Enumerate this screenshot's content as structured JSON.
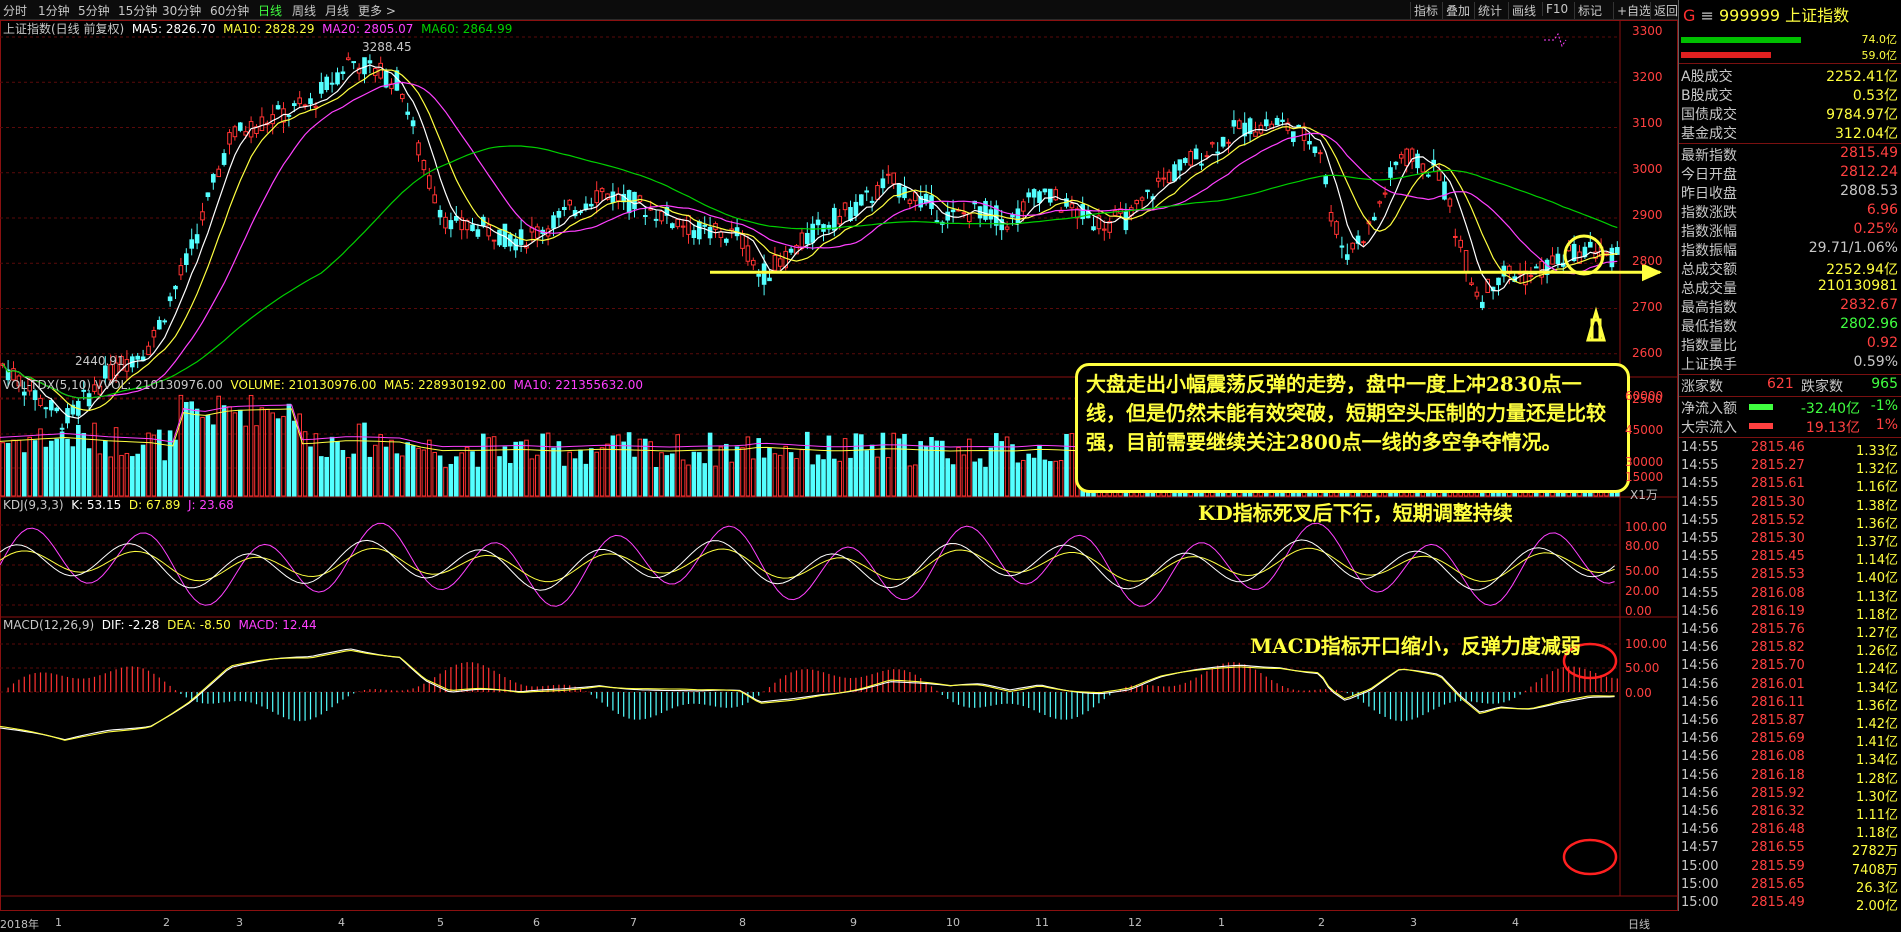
{
  "toolbar": {
    "periods": [
      "分时",
      "1分钟",
      "5分钟",
      "15分钟",
      "30分钟",
      "60分钟",
      "日线",
      "周线",
      "月线",
      "更多 >"
    ],
    "active": "日线",
    "right": [
      "指标",
      "叠加",
      "统计",
      "画线",
      "F10",
      "标记",
      "+自选",
      "返回"
    ]
  },
  "main": {
    "title": "上证指数(日线 前复权)",
    "ma5": "MA5: 2826.70",
    "ma10": "MA10: 2828.29",
    "ma20": "MA20: 2805.07",
    "ma60": "MA60: 2864.99",
    "high_label": "3288.45",
    "low_label": "2440.91",
    "y_ticks": [
      "3300",
      "3200",
      "3100",
      "3000",
      "2900",
      "2800",
      "2700",
      "2600",
      "2500"
    ]
  },
  "vol": {
    "title": "VOL-TDX(5,10)",
    "vvol": "VVOL: 210130976.00",
    "volume": "VOLUME: 210130976.00",
    "ma5": "MA5: 228930192.00",
    "ma10": "MA10: 221355632.00",
    "y_ticks": [
      "60000",
      "45000",
      "30000",
      "15000"
    ],
    "unit": "X1万"
  },
  "kdj": {
    "title": "KDJ(9,3,3)",
    "k": "K: 53.15",
    "d": "D: 67.89",
    "j": "J: 23.68",
    "y_ticks": [
      "100.00",
      "80.00",
      "50.00",
      "20.00",
      "0.00"
    ]
  },
  "macd": {
    "title": "MACD(12,26,9)",
    "dif": "DIF: -2.28",
    "dea": "DEA: -8.50",
    "macd": "MACD: 12.44",
    "y_ticks": [
      "100.00",
      "50.00",
      "0.00"
    ]
  },
  "x_labels": [
    "2018年",
    "1",
    "2",
    "3",
    "4",
    "5",
    "6",
    "7",
    "8",
    "9",
    "10",
    "11",
    "12",
    "1",
    "2",
    "3",
    "4"
  ],
  "x_right": "日线",
  "annotations": {
    "main": "大盘走出小幅震荡反弹的走势，盘中一度上冲2830点一线，但是仍然未能有效突破，短期空头压制的力量还是比较强，目前需要继续关注2800点一线的多空争夺情况。",
    "kd": "KD指标死叉后下行，短期调整持续",
    "macd": "MACD指标开口缩小，反弹力度减弱"
  },
  "panel": {
    "code": "999999",
    "name": "上证指数",
    "bar_top": "74.0亿",
    "bar_bot": "59.0亿",
    "stats": [
      [
        "A股成交",
        "2252.41亿",
        "#ffff40"
      ],
      [
        "B股成交",
        "0.53亿",
        "#ffff40"
      ],
      [
        "国债成交",
        "9784.97亿",
        "#ffff40"
      ],
      [
        "基金成交",
        "312.04亿",
        "#ffff40"
      ]
    ],
    "quote": [
      [
        "最新指数",
        "2815.49",
        "#ff4040"
      ],
      [
        "今日开盘",
        "2812.24",
        "#ff4040"
      ],
      [
        "昨日收盘",
        "2808.53",
        "#c8c8c8"
      ],
      [
        "指数涨跌",
        "6.96",
        "#ff4040"
      ],
      [
        "指数涨幅",
        "0.25%",
        "#ff4040"
      ],
      [
        "指数振幅",
        "29.71/1.06%",
        "#c8c8c8"
      ],
      [
        "总成交额",
        "2252.94亿",
        "#ffff40"
      ],
      [
        "总成交量",
        "210130981",
        "#ffff40"
      ],
      [
        "最高指数",
        "2832.67",
        "#ff4040"
      ],
      [
        "最低指数",
        "2802.96",
        "#40ff40"
      ],
      [
        "指数量比",
        "0.92",
        "#ff4040"
      ],
      [
        "上证换手",
        "0.59%",
        "#c8c8c8"
      ]
    ],
    "up_label": "涨家数",
    "up": "621",
    "down_label": "跌家数",
    "down": "965",
    "flow1_label": "净流入额",
    "flow1": "-32.40亿",
    "flow1_pct": "-1%",
    "flow2_label": "大宗流入",
    "flow2": "19.13亿",
    "flow2_pct": "1%",
    "ticks": [
      [
        "14:55",
        "2815.46",
        "1.33亿"
      ],
      [
        "14:55",
        "2815.27",
        "1.32亿"
      ],
      [
        "14:55",
        "2815.61",
        "1.16亿"
      ],
      [
        "14:55",
        "2815.30",
        "1.38亿"
      ],
      [
        "14:55",
        "2815.52",
        "1.36亿"
      ],
      [
        "14:55",
        "2815.30",
        "1.37亿"
      ],
      [
        "14:55",
        "2815.45",
        "1.14亿"
      ],
      [
        "14:55",
        "2815.53",
        "1.40亿"
      ],
      [
        "14:55",
        "2816.08",
        "1.13亿"
      ],
      [
        "14:56",
        "2816.19",
        "1.18亿"
      ],
      [
        "14:56",
        "2815.76",
        "1.27亿"
      ],
      [
        "14:56",
        "2815.82",
        "1.26亿"
      ],
      [
        "14:56",
        "2815.70",
        "1.24亿"
      ],
      [
        "14:56",
        "2816.01",
        "1.34亿"
      ],
      [
        "14:56",
        "2816.11",
        "1.36亿"
      ],
      [
        "14:56",
        "2815.87",
        "1.42亿"
      ],
      [
        "14:56",
        "2815.69",
        "1.41亿"
      ],
      [
        "14:56",
        "2816.08",
        "1.34亿"
      ],
      [
        "14:56",
        "2816.18",
        "1.28亿"
      ],
      [
        "14:56",
        "2815.92",
        "1.30亿"
      ],
      [
        "14:56",
        "2816.32",
        "1.11亿"
      ],
      [
        "14:56",
        "2816.48",
        "1.18亿"
      ],
      [
        "14:57",
        "2816.55",
        "2782万"
      ],
      [
        "15:00",
        "2815.59",
        "7408万"
      ],
      [
        "15:00",
        "2815.65",
        "26.3亿"
      ],
      [
        "15:00",
        "2815.49",
        "2.00亿"
      ]
    ]
  },
  "colors": {
    "up": "#ff3232",
    "down": "#54ffff",
    "ma5": "#ffffff",
    "ma10": "#ffff40",
    "ma20": "#ff40ff",
    "ma60": "#00d000",
    "annot": "#ffff40"
  }
}
